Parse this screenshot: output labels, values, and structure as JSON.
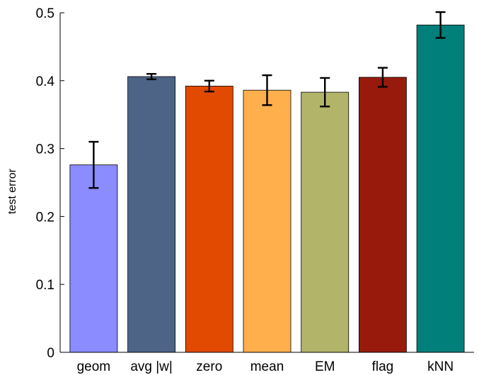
{
  "chart_data": {
    "type": "bar",
    "categories": [
      "geom",
      "avg |w|",
      "zero",
      "mean",
      "EM",
      "flag",
      "kNN"
    ],
    "values": [
      0.276,
      0.406,
      0.392,
      0.386,
      0.383,
      0.405,
      0.482
    ],
    "errors": [
      0.034,
      0.004,
      0.008,
      0.022,
      0.021,
      0.014,
      0.019
    ],
    "colors": [
      "#8a8cff",
      "#4d6487",
      "#e14a00",
      "#ffb04d",
      "#b2b46a",
      "#971a0d",
      "#007f7b"
    ],
    "ylabel": "test error",
    "xlabel": "",
    "title": "",
    "ylim": [
      0,
      0.5
    ],
    "yticks": [
      0,
      0.1,
      0.2,
      0.3,
      0.4,
      0.5
    ],
    "ytick_labels": [
      "0",
      "0.1",
      "0.2",
      "0.3",
      "0.4",
      "0.5"
    ],
    "grid": false,
    "legend": false
  }
}
